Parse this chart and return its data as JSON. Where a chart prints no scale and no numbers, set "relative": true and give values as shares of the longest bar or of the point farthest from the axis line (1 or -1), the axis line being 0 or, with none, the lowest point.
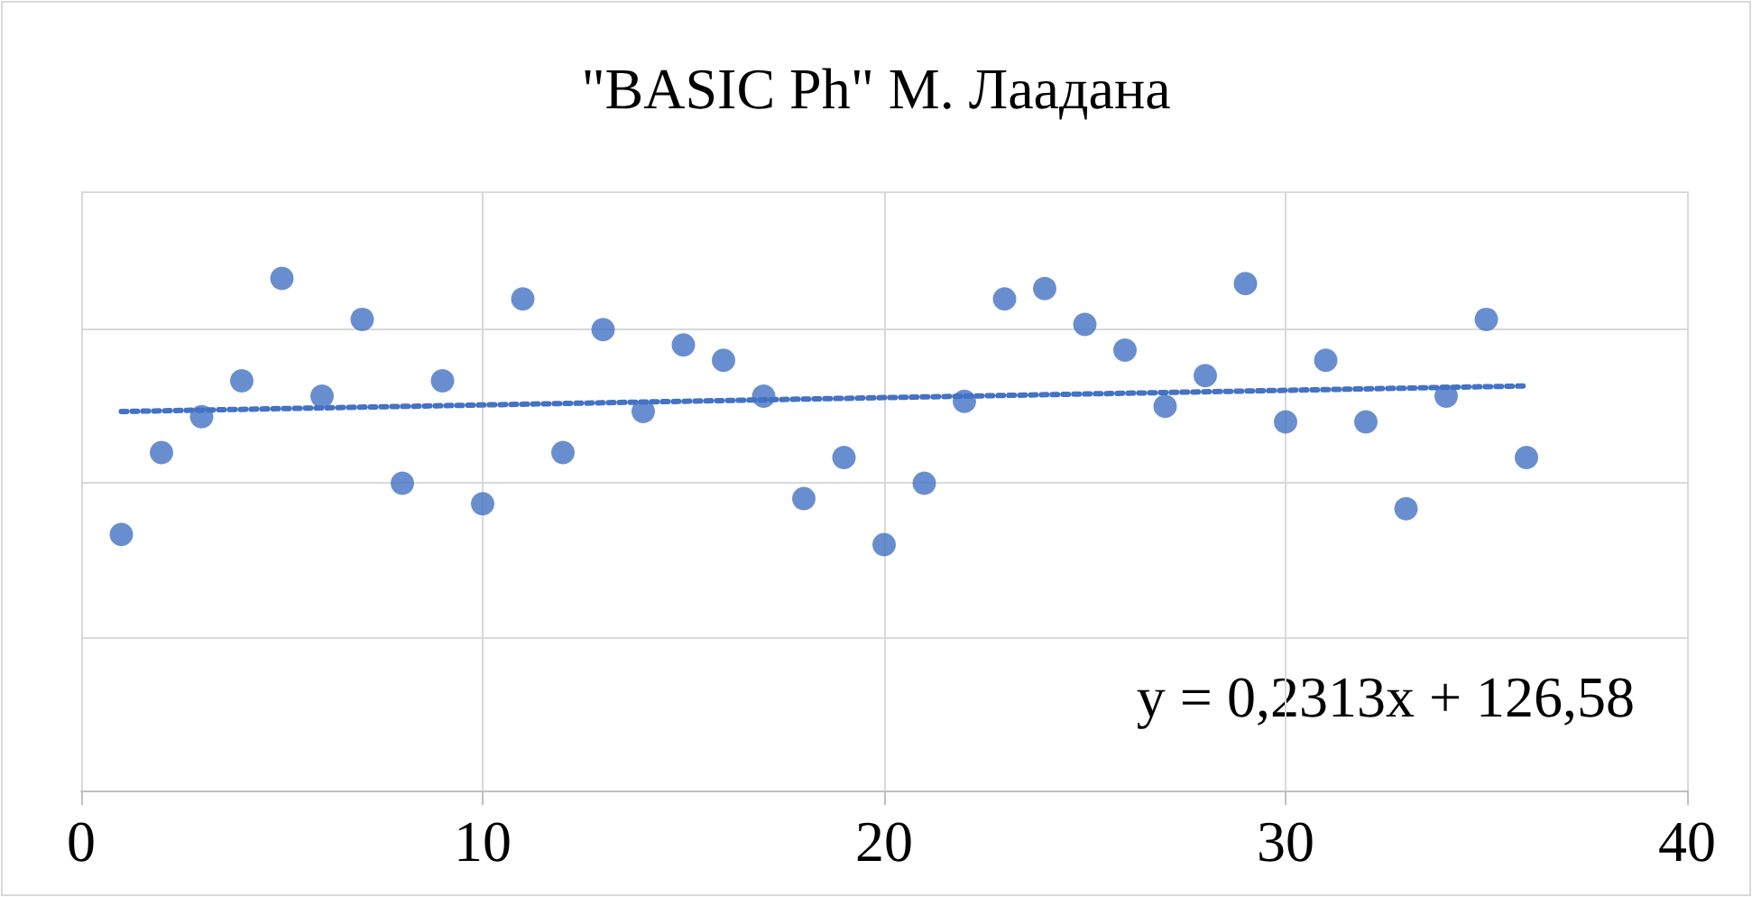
{
  "chart_data": {
    "type": "scatter",
    "title": "\"BASIC Ph\" М. Лаадана",
    "relative": true,
    "xlim": [
      0,
      40
    ],
    "xticks": [
      0,
      10,
      20,
      30,
      40
    ],
    "grid": true,
    "marker": "circle",
    "annotations": [
      "y = 0,2313x + 126,58"
    ],
    "series": [
      {
        "color": "#4472c4",
        "x": [
          1,
          2,
          3,
          4,
          5,
          6,
          7,
          8,
          9,
          10,
          11,
          12,
          13,
          14,
          15,
          16,
          17,
          18,
          19,
          20,
          21,
          22,
          23,
          24,
          25,
          26,
          27,
          28,
          29,
          30,
          31,
          32,
          33,
          34,
          35,
          36
        ],
        "values": [
          0.5,
          0.66,
          0.73,
          0.8,
          1,
          0.77,
          0.92,
          0.6,
          0.8,
          0.56,
          0.96,
          0.66,
          0.9,
          0.74,
          0.87,
          0.84,
          0.77,
          0.57,
          0.65,
          0.48,
          0.6,
          0.76,
          0.96,
          0.98,
          0.91,
          0.86,
          0.75,
          0.81,
          0.99,
          0.72,
          0.84,
          0.72,
          0.55,
          0.77,
          0.92,
          0.65
        ]
      },
      {
        "type": "line",
        "color": "#4472c4",
        "line_style": "dotted",
        "marker": "none",
        "x": [
          1,
          36
        ],
        "values": [
          0.74,
          0.79
        ]
      }
    ]
  }
}
